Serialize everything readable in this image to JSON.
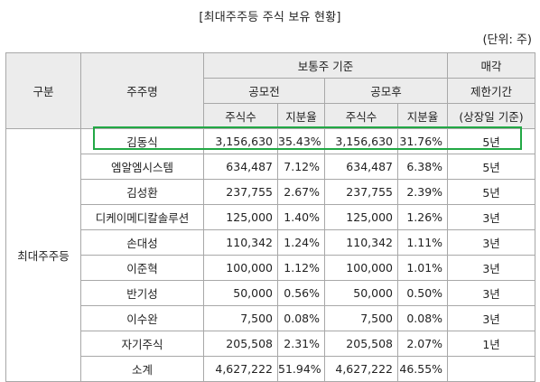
{
  "title": "[최대주주등 주식 보유 현황]",
  "unit": "(단위: 주)",
  "headers": {
    "category": "구분",
    "shareholder": "주주명",
    "common_basis": "보통주 기준",
    "before_ipo": "공모전",
    "after_ipo": "공모후",
    "shares": "주식수",
    "ratio": "지분율",
    "sale": "매각",
    "restriction": "제한기간",
    "restriction_note": "(상장일 기준)"
  },
  "group_label": "최대주주등",
  "highlight_color": "#22a845",
  "rows": [
    {
      "name": "김동식",
      "shares_before": "3,156,630",
      "ratio_before": "35.43%",
      "shares_after": "3,156,630",
      "ratio_after": "31.76%",
      "period": "5년"
    },
    {
      "name": "엠알엠시스템",
      "shares_before": "634,487",
      "ratio_before": "7.12%",
      "shares_after": "634,487",
      "ratio_after": "6.38%",
      "period": "5년"
    },
    {
      "name": "김성환",
      "shares_before": "237,755",
      "ratio_before": "2.67%",
      "shares_after": "237,755",
      "ratio_after": "2.39%",
      "period": "5년"
    },
    {
      "name": "디케이메디칼솔루션",
      "shares_before": "125,000",
      "ratio_before": "1.40%",
      "shares_after": "125,000",
      "ratio_after": "1.26%",
      "period": "3년"
    },
    {
      "name": "손대성",
      "shares_before": "110,342",
      "ratio_before": "1.24%",
      "shares_after": "110,342",
      "ratio_after": "1.11%",
      "period": "3년"
    },
    {
      "name": "이준혁",
      "shares_before": "100,000",
      "ratio_before": "1.12%",
      "shares_after": "100,000",
      "ratio_after": "1.01%",
      "period": "3년"
    },
    {
      "name": "반기성",
      "shares_before": "50,000",
      "ratio_before": "0.56%",
      "shares_after": "50,000",
      "ratio_after": "0.50%",
      "period": "3년"
    },
    {
      "name": "이수완",
      "shares_before": "7,500",
      "ratio_before": "0.08%",
      "shares_after": "7,500",
      "ratio_after": "0.08%",
      "period": "3년"
    },
    {
      "name": "자기주식",
      "shares_before": "205,508",
      "ratio_before": "2.31%",
      "shares_after": "205,508",
      "ratio_after": "2.07%",
      "period": "1년"
    },
    {
      "name": "소계",
      "shares_before": "4,627,222",
      "ratio_before": "51.94%",
      "shares_after": "4,627,222",
      "ratio_after": "46.55%",
      "period": ""
    }
  ]
}
